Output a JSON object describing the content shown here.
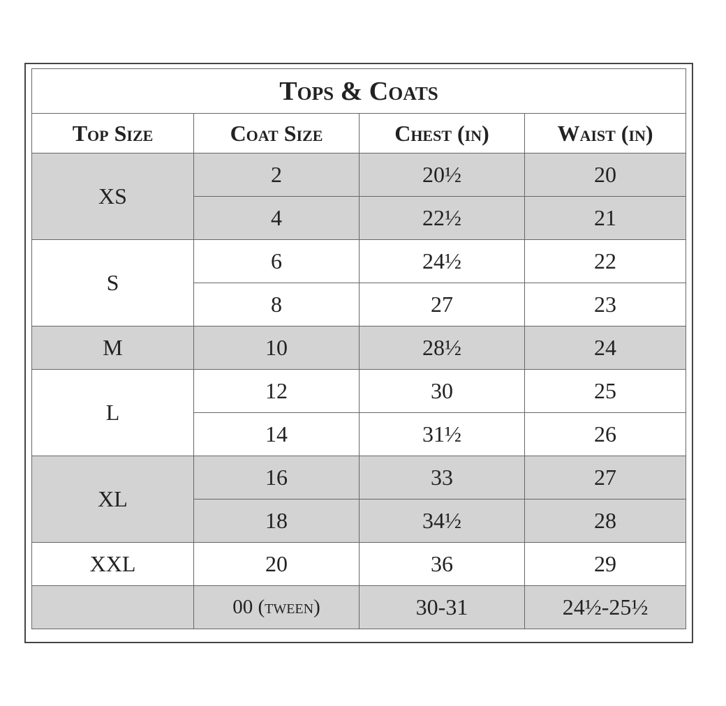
{
  "title": "Tops & Coats",
  "headers": [
    "Top Size",
    "Coat Size",
    "Chest (in)",
    "Waist (in)"
  ],
  "groups": [
    {
      "top": "XS",
      "rows": [
        [
          "2",
          "20½",
          "20"
        ],
        [
          "4",
          "22½",
          "21"
        ]
      ]
    },
    {
      "top": "S",
      "rows": [
        [
          "6",
          "24½",
          "22"
        ],
        [
          "8",
          "27",
          "23"
        ]
      ]
    },
    {
      "top": "M",
      "rows": [
        [
          "10",
          "28½",
          "24"
        ]
      ]
    },
    {
      "top": "L",
      "rows": [
        [
          "12",
          "30",
          "25"
        ],
        [
          "14",
          "31½",
          "26"
        ]
      ]
    },
    {
      "top": "XL",
      "rows": [
        [
          "16",
          "33",
          "27"
        ],
        [
          "18",
          "34½",
          "28"
        ]
      ]
    },
    {
      "top": "XXL",
      "rows": [
        [
          "20",
          "36",
          "29"
        ]
      ]
    }
  ],
  "extra_row": [
    "00 (tween)",
    "30-31",
    "24½-25½"
  ]
}
